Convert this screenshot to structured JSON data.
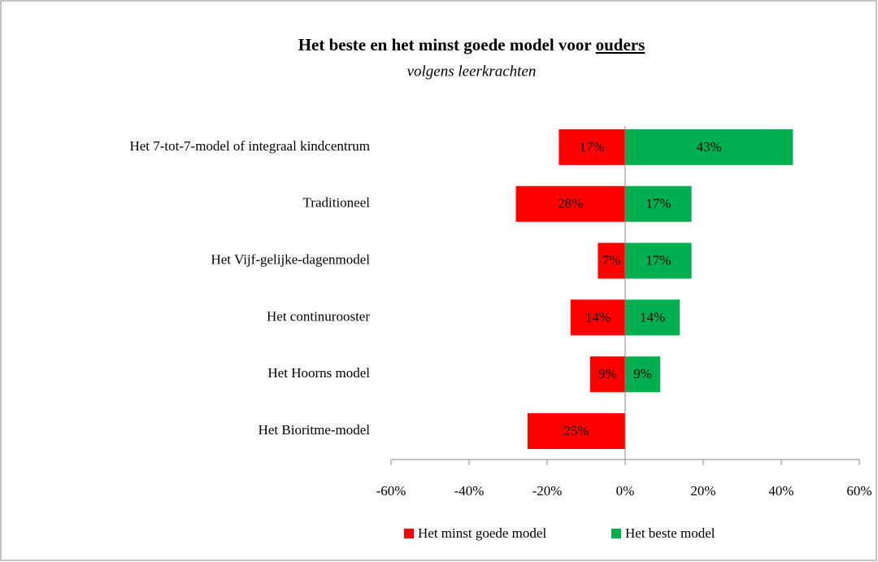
{
  "chart_data": {
    "type": "diverging-bar",
    "title": "Het beste en het minst goede model voor",
    "title_emphasis": "ouders",
    "subtitle": "volgens leerkrachten",
    "categories": [
      "Het 7-tot-7-model  of integraal kindcentrum",
      "Traditioneel",
      "Het Vijf-gelijke-dagenmodel",
      "Het continurooster",
      "Het Hoorns model",
      "Het Bioritme-model"
    ],
    "series": [
      {
        "name": "Het minst goede model",
        "color": "#ff0000",
        "values": [
          -17,
          -28,
          -7,
          -14,
          -9,
          -25
        ],
        "value_labels": [
          "17%",
          "28%",
          "7%",
          "14%",
          "9%",
          "25%"
        ]
      },
      {
        "name": "Het beste model",
        "color": "#00b050",
        "values": [
          43,
          17,
          17,
          14,
          9,
          null
        ],
        "value_labels": [
          "43%",
          "17%",
          "17%",
          "14%",
          "9%",
          null
        ]
      }
    ],
    "xlim": [
      -60,
      60
    ],
    "xticks": [
      {
        "value": -60,
        "label": "-60%"
      },
      {
        "value": -40,
        "label": "-40%"
      },
      {
        "value": -20,
        "label": "-20%"
      },
      {
        "value": 0,
        "label": "0%"
      },
      {
        "value": 20,
        "label": "20%"
      },
      {
        "value": 40,
        "label": "40%"
      },
      {
        "value": 60,
        "label": "60%"
      }
    ],
    "legend": "bottom"
  }
}
